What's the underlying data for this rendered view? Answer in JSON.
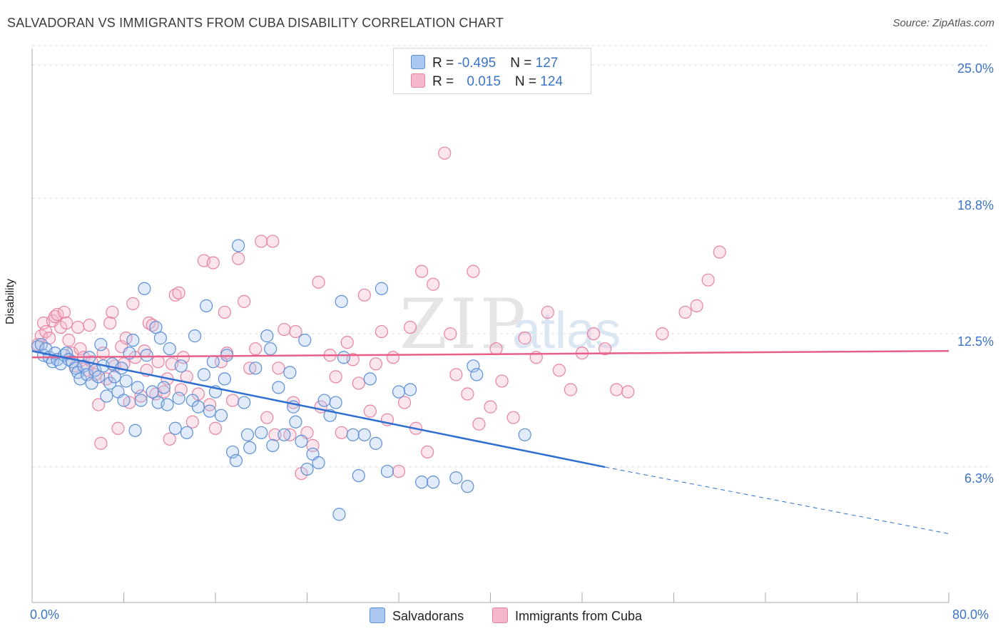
{
  "header": {
    "title": "SALVADORAN VS IMMIGRANTS FROM CUBA DISABILITY CORRELATION CHART",
    "source": "Source: ZipAtlas.com"
  },
  "legend": {
    "row1": {
      "r_label": "R = ",
      "r_value": "-0.495",
      "n_label": "N = ",
      "n_value": "127"
    },
    "row2": {
      "r_label": "R = ",
      "r_value": "0.015",
      "n_label": "N = ",
      "n_value": "124"
    }
  },
  "bottom_legend": {
    "series1": "Salvadorans",
    "series2": "Immigrants from Cuba"
  },
  "axis": {
    "ylabel": "Disability",
    "y_ticks": [
      "25.0%",
      "18.8%",
      "12.5%",
      "6.3%"
    ],
    "x_min_label": "0.0%",
    "x_max_label": "80.0%"
  },
  "colors": {
    "blue_fill": "#aac7ef",
    "blue_stroke": "#5b8fd6",
    "blue_line": "#2f6fd0",
    "pink_fill": "#f5b8cb",
    "pink_stroke": "#e8829f",
    "pink_line": "#e8608a",
    "grid": "#dcdcdc",
    "tick_label": "#3b74c7"
  },
  "chart_data": {
    "type": "scatter",
    "xlim": [
      0,
      80
    ],
    "ylim": [
      0,
      26.2
    ],
    "y_ticks": [
      6.3,
      12.5,
      18.8,
      25.0
    ],
    "grid": true,
    "legend_placement": "top-center",
    "series": [
      {
        "name": "Salvadorans",
        "r": -0.495,
        "n": 127,
        "trend": {
          "x0": 0,
          "y0": 11.7,
          "x1": 50,
          "y1": 6.3,
          "dashed_to_x": 80,
          "dashed_to_y": 3.2
        },
        "points": [
          [
            0.5,
            11.9
          ],
          [
            0.8,
            12.0
          ],
          [
            1.0,
            11.5
          ],
          [
            1.2,
            11.8
          ],
          [
            1.5,
            11.4
          ],
          [
            1.8,
            11.2
          ],
          [
            2.0,
            11.6
          ],
          [
            2.2,
            11.3
          ],
          [
            2.5,
            11.1
          ],
          [
            2.8,
            11.5
          ],
          [
            3.0,
            11.6
          ],
          [
            3.2,
            11.3
          ],
          [
            3.5,
            11.2
          ],
          [
            3.8,
            10.9
          ],
          [
            4.0,
            10.7
          ],
          [
            4.2,
            10.4
          ],
          [
            4.5,
            11.0
          ],
          [
            4.8,
            10.6
          ],
          [
            5.0,
            11.4
          ],
          [
            5.2,
            10.2
          ],
          [
            5.5,
            10.8
          ],
          [
            5.8,
            10.5
          ],
          [
            6.0,
            12.0
          ],
          [
            6.2,
            11.0
          ],
          [
            6.5,
            9.6
          ],
          [
            6.8,
            10.2
          ],
          [
            7.0,
            11.1
          ],
          [
            7.2,
            10.5
          ],
          [
            7.5,
            9.8
          ],
          [
            7.8,
            10.9
          ],
          [
            8.0,
            9.4
          ],
          [
            8.2,
            10.3
          ],
          [
            8.5,
            11.6
          ],
          [
            8.8,
            12.2
          ],
          [
            9.0,
            8.0
          ],
          [
            9.2,
            10.0
          ],
          [
            9.5,
            9.4
          ],
          [
            9.8,
            14.6
          ],
          [
            10.0,
            11.5
          ],
          [
            10.5,
            9.8
          ],
          [
            10.8,
            12.8
          ],
          [
            11.0,
            9.3
          ],
          [
            11.2,
            12.3
          ],
          [
            11.5,
            10.0
          ],
          [
            11.8,
            9.2
          ],
          [
            12.0,
            11.8
          ],
          [
            12.5,
            8.1
          ],
          [
            12.8,
            9.5
          ],
          [
            13.0,
            11.0
          ],
          [
            13.5,
            7.9
          ],
          [
            14.0,
            9.4
          ],
          [
            14.2,
            12.4
          ],
          [
            14.5,
            9.1
          ],
          [
            15.0,
            10.6
          ],
          [
            15.2,
            13.8
          ],
          [
            15.5,
            8.9
          ],
          [
            15.8,
            11.2
          ],
          [
            16.0,
            9.8
          ],
          [
            16.5,
            8.7
          ],
          [
            16.8,
            10.4
          ],
          [
            17.0,
            11.5
          ],
          [
            17.5,
            7.0
          ],
          [
            17.8,
            6.6
          ],
          [
            18.0,
            16.6
          ],
          [
            18.5,
            9.3
          ],
          [
            18.8,
            7.8
          ],
          [
            19.0,
            7.2
          ],
          [
            19.5,
            10.9
          ],
          [
            20.0,
            7.9
          ],
          [
            20.5,
            12.4
          ],
          [
            20.8,
            11.8
          ],
          [
            21.0,
            7.3
          ],
          [
            21.5,
            10.0
          ],
          [
            22.0,
            7.8
          ],
          [
            22.5,
            10.7
          ],
          [
            22.8,
            9.1
          ],
          [
            23.0,
            8.4
          ],
          [
            23.5,
            7.5
          ],
          [
            23.8,
            12.2
          ],
          [
            24.0,
            6.2
          ],
          [
            24.5,
            6.9
          ],
          [
            25.0,
            6.5
          ],
          [
            25.5,
            9.4
          ],
          [
            26.0,
            8.7
          ],
          [
            26.5,
            9.3
          ],
          [
            26.8,
            4.1
          ],
          [
            27.0,
            14.0
          ],
          [
            27.2,
            11.4
          ],
          [
            28.0,
            7.8
          ],
          [
            28.5,
            5.9
          ],
          [
            29.0,
            7.8
          ],
          [
            29.5,
            10.4
          ],
          [
            30.0,
            7.4
          ],
          [
            30.5,
            14.6
          ],
          [
            31.0,
            6.1
          ],
          [
            32.0,
            9.8
          ],
          [
            33.0,
            9.9
          ],
          [
            34.0,
            5.6
          ],
          [
            35.0,
            5.6
          ],
          [
            37.0,
            5.8
          ],
          [
            38.0,
            5.4
          ],
          [
            38.5,
            11.0
          ],
          [
            38.8,
            10.6
          ],
          [
            43.0,
            7.8
          ]
        ]
      },
      {
        "name": "Immigrants from Cuba",
        "r": 0.015,
        "n": 124,
        "trend": {
          "x0": 0,
          "y0": 11.4,
          "x1": 80,
          "y1": 11.7
        },
        "points": [
          [
            0.5,
            12.0
          ],
          [
            0.8,
            12.4
          ],
          [
            1.0,
            13.0
          ],
          [
            1.2,
            12.6
          ],
          [
            1.5,
            12.3
          ],
          [
            1.8,
            13.1
          ],
          [
            2.0,
            13.3
          ],
          [
            2.2,
            13.4
          ],
          [
            2.5,
            12.8
          ],
          [
            2.8,
            13.5
          ],
          [
            3.0,
            13.0
          ],
          [
            3.2,
            12.2
          ],
          [
            3.5,
            11.6
          ],
          [
            3.8,
            11.0
          ],
          [
            4.0,
            12.8
          ],
          [
            4.2,
            11.8
          ],
          [
            4.5,
            11.4
          ],
          [
            4.8,
            10.8
          ],
          [
            5.0,
            12.9
          ],
          [
            5.2,
            11.2
          ],
          [
            5.5,
            10.6
          ],
          [
            5.8,
            9.2
          ],
          [
            6.0,
            7.4
          ],
          [
            6.2,
            11.6
          ],
          [
            6.5,
            10.4
          ],
          [
            6.8,
            13.0
          ],
          [
            7.0,
            13.5
          ],
          [
            7.2,
            11.0
          ],
          [
            7.5,
            8.1
          ],
          [
            7.8,
            11.9
          ],
          [
            8.0,
            11.1
          ],
          [
            8.2,
            12.3
          ],
          [
            8.5,
            9.3
          ],
          [
            8.8,
            13.9
          ],
          [
            9.0,
            11.4
          ],
          [
            9.5,
            9.6
          ],
          [
            9.8,
            11.7
          ],
          [
            10.0,
            10.8
          ],
          [
            10.2,
            13.0
          ],
          [
            10.5,
            12.9
          ],
          [
            10.8,
            9.7
          ],
          [
            11.0,
            11.2
          ],
          [
            11.5,
            9.8
          ],
          [
            11.8,
            10.4
          ],
          [
            12.0,
            7.6
          ],
          [
            12.2,
            11.1
          ],
          [
            12.5,
            14.3
          ],
          [
            12.8,
            14.4
          ],
          [
            13.0,
            9.9
          ],
          [
            13.2,
            11.4
          ],
          [
            13.5,
            10.5
          ],
          [
            14.0,
            8.4
          ],
          [
            14.5,
            9.7
          ],
          [
            15.0,
            15.9
          ],
          [
            15.5,
            9.2
          ],
          [
            15.8,
            15.8
          ],
          [
            16.0,
            8.1
          ],
          [
            16.5,
            11.2
          ],
          [
            16.8,
            13.5
          ],
          [
            17.0,
            11.6
          ],
          [
            17.5,
            9.4
          ],
          [
            18.0,
            16.0
          ],
          [
            18.5,
            14.0
          ],
          [
            19.0,
            10.9
          ],
          [
            19.5,
            11.8
          ],
          [
            20.0,
            16.8
          ],
          [
            20.5,
            8.6
          ],
          [
            21.0,
            16.8
          ],
          [
            21.2,
            7.8
          ],
          [
            21.5,
            10.9
          ],
          [
            22.0,
            12.7
          ],
          [
            22.5,
            7.8
          ],
          [
            22.8,
            9.3
          ],
          [
            23.0,
            12.6
          ],
          [
            23.5,
            6.0
          ],
          [
            24.0,
            7.9
          ],
          [
            24.5,
            7.3
          ],
          [
            25.0,
            14.9
          ],
          [
            25.2,
            9.1
          ],
          [
            26.0,
            11.5
          ],
          [
            26.5,
            10.5
          ],
          [
            27.0,
            7.9
          ],
          [
            27.5,
            12.1
          ],
          [
            28.0,
            11.3
          ],
          [
            28.5,
            10.2
          ],
          [
            29.0,
            14.3
          ],
          [
            29.5,
            8.9
          ],
          [
            30.0,
            11.1
          ],
          [
            30.5,
            12.6
          ],
          [
            31.0,
            8.5
          ],
          [
            31.5,
            11.4
          ],
          [
            32.0,
            6.1
          ],
          [
            32.5,
            9.3
          ],
          [
            33.0,
            12.8
          ],
          [
            33.5,
            8.1
          ],
          [
            34.0,
            15.4
          ],
          [
            34.5,
            7.0
          ],
          [
            35.0,
            14.8
          ],
          [
            36.0,
            20.9
          ],
          [
            36.5,
            12.5
          ],
          [
            37.0,
            10.6
          ],
          [
            38.0,
            9.7
          ],
          [
            38.5,
            15.4
          ],
          [
            39.0,
            8.3
          ],
          [
            40.0,
            9.1
          ],
          [
            40.5,
            11.8
          ],
          [
            41.0,
            10.3
          ],
          [
            42.0,
            8.6
          ],
          [
            43.0,
            12.3
          ],
          [
            44.0,
            11.4
          ],
          [
            45.0,
            13.5
          ],
          [
            46.0,
            10.8
          ],
          [
            47.0,
            9.9
          ],
          [
            48.0,
            11.6
          ],
          [
            49.0,
            12.5
          ],
          [
            50.0,
            11.8
          ],
          [
            51.0,
            9.9
          ],
          [
            52.0,
            9.8
          ],
          [
            55.0,
            12.5
          ],
          [
            57.0,
            13.5
          ],
          [
            58.0,
            13.8
          ],
          [
            59.0,
            15.0
          ],
          [
            60.0,
            16.3
          ]
        ]
      }
    ]
  }
}
